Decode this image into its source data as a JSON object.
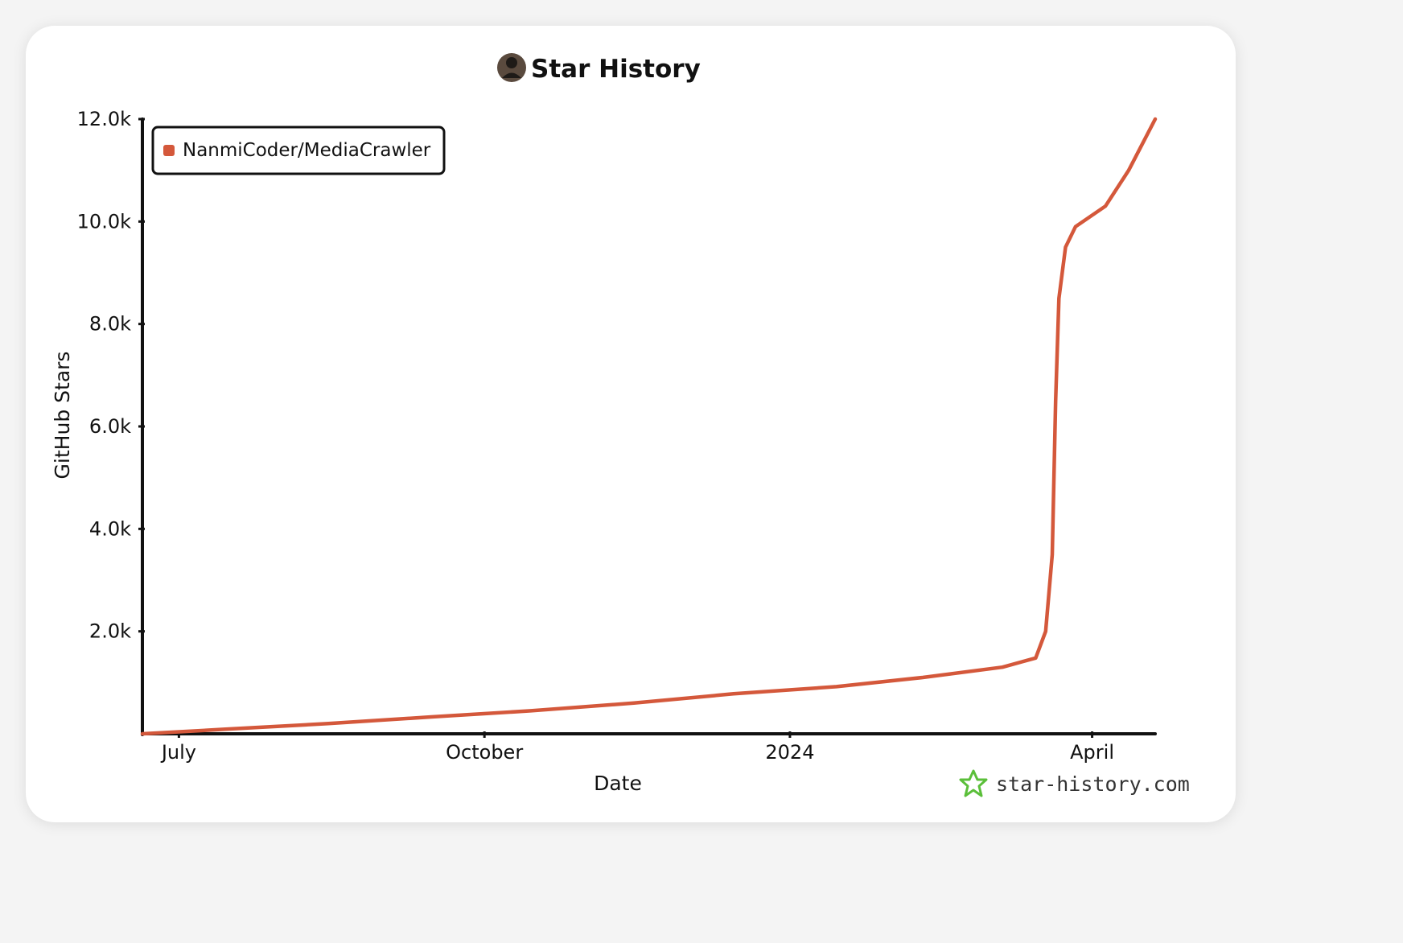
{
  "header": {
    "title": "Star History",
    "avatar_icon": "avatar-icon"
  },
  "watermark": {
    "text": "star-history.com",
    "icon": "star-logo-icon",
    "icon_color": "#5bbf3a"
  },
  "colors": {
    "series": "#d4583b",
    "axis": "#111111",
    "background": "#ffffff"
  },
  "chart_data": {
    "type": "line",
    "title": "Star History",
    "xlabel": "Date",
    "ylabel": "GitHub Stars",
    "x_scale": "time",
    "x_ticks": [
      "July",
      "October",
      "2024",
      "April"
    ],
    "x_tick_dates": [
      "2023-07-01",
      "2023-10-01",
      "2024-01-01",
      "2024-04-01"
    ],
    "xlim": [
      "2023-06-20",
      "2024-04-20"
    ],
    "y_ticks": [
      "2.0k",
      "4.0k",
      "6.0k",
      "8.0k",
      "10.0k",
      "12.0k"
    ],
    "y_tick_values": [
      2000,
      4000,
      6000,
      8000,
      10000,
      12000
    ],
    "ylim": [
      0,
      12000
    ],
    "grid": false,
    "legend_position": "top-left",
    "series": [
      {
        "name": "NanmiCoder/MediaCrawler",
        "color": "#d4583b",
        "points": [
          [
            "2023-06-20",
            0
          ],
          [
            "2023-07-15",
            90
          ],
          [
            "2023-08-15",
            200
          ],
          [
            "2023-09-15",
            330
          ],
          [
            "2023-10-15",
            450
          ],
          [
            "2023-11-15",
            600
          ],
          [
            "2023-12-15",
            780
          ],
          [
            "2024-01-15",
            920
          ],
          [
            "2024-02-10",
            1100
          ],
          [
            "2024-03-05",
            1300
          ],
          [
            "2024-03-15",
            1480
          ],
          [
            "2024-03-18",
            2000
          ],
          [
            "2024-03-20",
            3500
          ],
          [
            "2024-03-21",
            6500
          ],
          [
            "2024-03-22",
            8500
          ],
          [
            "2024-03-24",
            9500
          ],
          [
            "2024-03-27",
            9900
          ],
          [
            "2024-04-05",
            10300
          ],
          [
            "2024-04-12",
            11000
          ],
          [
            "2024-04-20",
            12000
          ]
        ]
      }
    ]
  }
}
